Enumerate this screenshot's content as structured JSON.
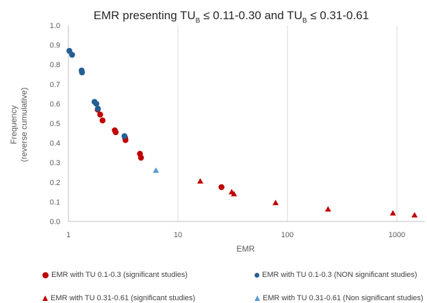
{
  "chart_data": {
    "type": "scatter",
    "title": "EMR presenting TU",
    "title_parts": {
      "prefix": "EMR presenting TU",
      "sub1": "B",
      "mid": " ≤ 0.11-0.30 and TU",
      "sub2": "B",
      "suffix": " ≤ 0.31-0.61"
    },
    "xlabel": "EMR",
    "ylabel_lines": [
      "Frequency",
      "(reverse cumulative)"
    ],
    "x_scale": "log",
    "xlim": [
      1,
      1500
    ],
    "ylim": [
      0,
      1.0
    ],
    "x_ticks": [
      "1",
      "10",
      "100",
      "1000"
    ],
    "y_ticks": [
      "0.0",
      "0.1",
      "0.2",
      "0.3",
      "0.4",
      "0.5",
      "0.6",
      "0.7",
      "0.8",
      "0.9",
      "1.0"
    ],
    "grid": "vertical major gridlines",
    "legend_position": "bottom",
    "series": [
      {
        "name": "EMR with TU 0.1-0.3 (significant studies)",
        "marker": "circle",
        "color": "#c00000",
        "points": [
          [
            1.85,
            0.57
          ],
          [
            1.95,
            0.545
          ],
          [
            2.05,
            0.515
          ],
          [
            2.65,
            0.465
          ],
          [
            2.7,
            0.455
          ],
          [
            3.3,
            0.425
          ],
          [
            3.32,
            0.415
          ],
          [
            4.5,
            0.345
          ],
          [
            4.6,
            0.325
          ],
          [
            25.0,
            0.175
          ]
        ]
      },
      {
        "name": "EMR with TU 0.1-0.3 (NON significant studies)",
        "marker": "circle",
        "color": "#255e91",
        "points": [
          [
            1.02,
            0.87
          ],
          [
            1.08,
            0.85
          ],
          [
            1.32,
            0.77
          ],
          [
            1.33,
            0.76
          ],
          [
            1.73,
            0.61
          ],
          [
            1.8,
            0.6
          ],
          [
            1.86,
            0.575
          ],
          [
            3.25,
            0.435
          ]
        ]
      },
      {
        "name": "EMR with TU 0.31-0.61 (significant studies)",
        "marker": "triangle",
        "color": "#c00000",
        "points": [
          [
            16.0,
            0.205
          ],
          [
            31.0,
            0.15
          ],
          [
            32.5,
            0.14
          ],
          [
            78.0,
            0.095
          ],
          [
            235.0,
            0.062
          ],
          [
            920.0,
            0.042
          ],
          [
            1450.0,
            0.032
          ]
        ]
      },
      {
        "name": "EMR with TU 0.31-0.61 (Non significant studies)",
        "marker": "triangle",
        "color": "#5b9bd5",
        "points": [
          [
            6.3,
            0.26
          ]
        ]
      }
    ]
  }
}
